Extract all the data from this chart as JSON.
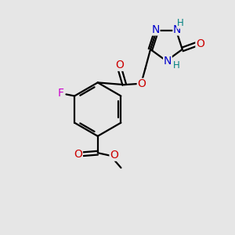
{
  "bg_color": "#e6e6e6",
  "bond_color": "#000000",
  "bond_width": 1.6,
  "atom_colors": {
    "N": "#0000cc",
    "O": "#cc0000",
    "F": "#cc00cc",
    "H": "#008080",
    "C": "#000000"
  },
  "font_size_atom": 10,
  "font_size_h": 8.5
}
